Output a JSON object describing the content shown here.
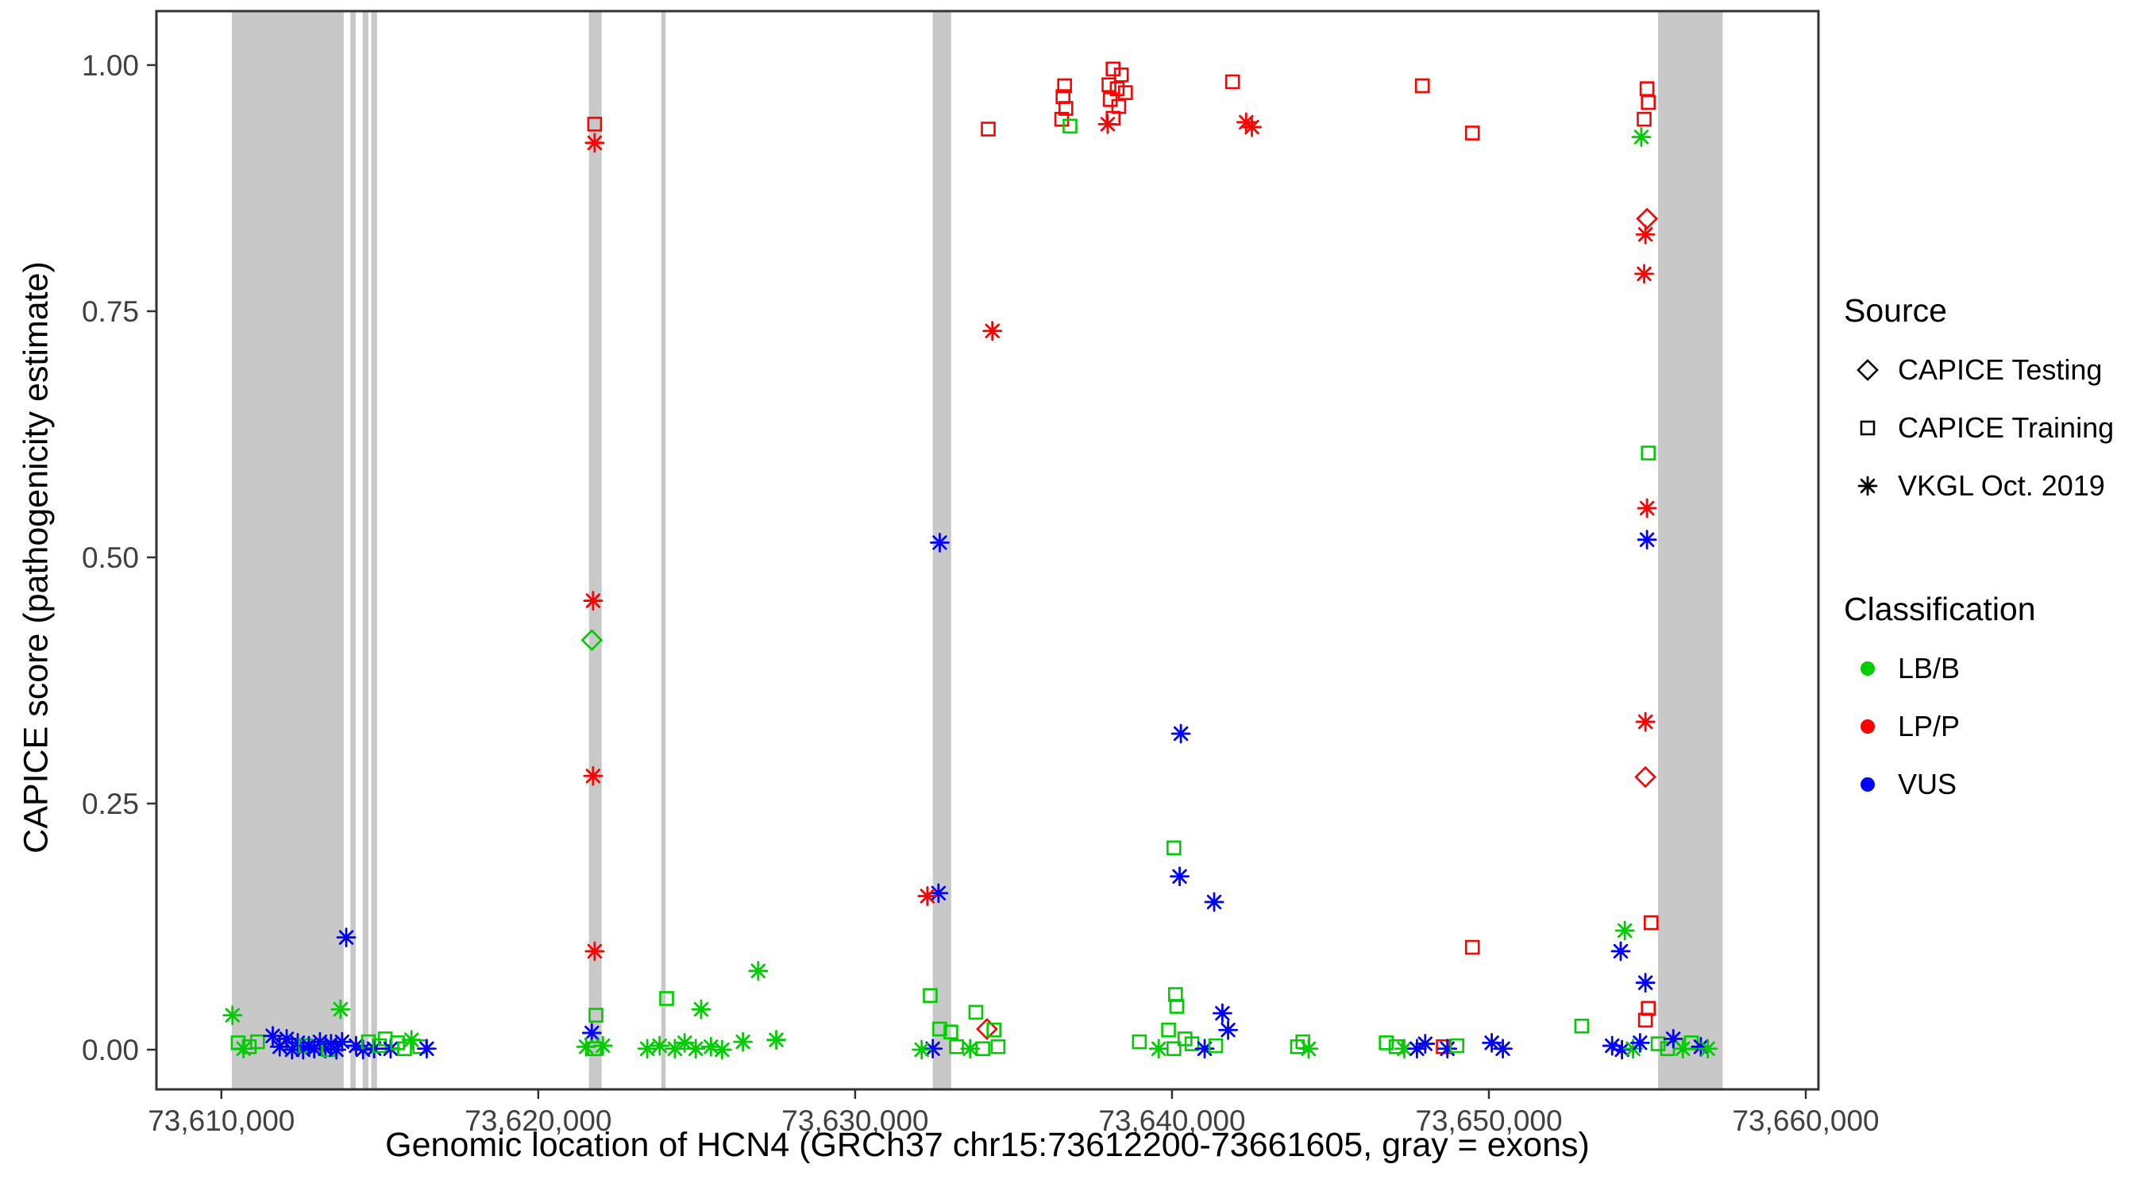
{
  "legend": {
    "source": {
      "title": "Source",
      "items": [
        {
          "label": "CAPICE Testing",
          "marker": "diamond"
        },
        {
          "label": "CAPICE Training",
          "marker": "square"
        },
        {
          "label": "VKGL Oct. 2019",
          "marker": "asterisk"
        }
      ]
    },
    "classification": {
      "title": "Classification",
      "items": [
        {
          "label": "LB/B",
          "color": "#00cd00"
        },
        {
          "label": "LP/P",
          "color": "#ff0000"
        },
        {
          "label": "VUS",
          "color": "#0000ff"
        }
      ]
    }
  },
  "chart_data": {
    "type": "scatter",
    "title": "",
    "xlabel": "Genomic location of HCN4 (GRCh37 chr15:73612200-73661605, gray = exons)",
    "ylabel": "CAPICE score (pathogenicity estimate)",
    "xlim": [
      73607950,
      73660400
    ],
    "ylim": [
      -0.0403,
      1.0548
    ],
    "x_ticks": [
      {
        "v": 73610000,
        "label": "73,610,000"
      },
      {
        "v": 73620000,
        "label": "73,620,000"
      },
      {
        "v": 73630000,
        "label": "73,630,000"
      },
      {
        "v": 73640000,
        "label": "73,640,000"
      },
      {
        "v": 73650000,
        "label": "73,650,000"
      },
      {
        "v": 73660000,
        "label": "73,660,000"
      }
    ],
    "y_ticks": [
      {
        "v": 0,
        "label": "0.00"
      },
      {
        "v": 0.25,
        "label": "0.25"
      },
      {
        "v": 0.5,
        "label": "0.50"
      },
      {
        "v": 0.75,
        "label": "0.75"
      },
      {
        "v": 1,
        "label": "1.00"
      }
    ],
    "colors": {
      "LB/B": "#00cd00",
      "LP/P": "#ff0000",
      "VUS": "#0000ff",
      "exon": "#c8c8c8"
    },
    "marker_by_source": {
      "CAPICE Testing": "diamond",
      "CAPICE Training": "square",
      "VKGL Oct. 2019": "asterisk"
    },
    "exon_regions": [
      [
        73610330,
        73613860
      ],
      [
        73614070,
        73614240
      ],
      [
        73614460,
        73614640
      ],
      [
        73614730,
        73614910
      ],
      [
        73621600,
        73622000
      ],
      [
        73623880,
        73624020
      ],
      [
        73632450,
        73633030
      ],
      [
        73655340,
        73657380
      ]
    ],
    "points_format": [
      "x",
      "y",
      "classification",
      "source"
    ],
    "points": [
      [
        73610350,
        0.035,
        "LB/B",
        "VKGL Oct. 2019"
      ],
      [
        73610530,
        0.007,
        "LB/B",
        "CAPICE Training"
      ],
      [
        73610700,
        0.001,
        "LB/B",
        "VKGL Oct. 2019"
      ],
      [
        73610880,
        0.003,
        "LB/B",
        "CAPICE Training"
      ],
      [
        73611140,
        0.008,
        "LB/B",
        "CAPICE Training"
      ],
      [
        73611620,
        0.014,
        "VUS",
        "VKGL Oct. 2019"
      ],
      [
        73611840,
        0.003,
        "VUS",
        "VKGL Oct. 2019"
      ],
      [
        73612060,
        0.011,
        "VUS",
        "VKGL Oct. 2019"
      ],
      [
        73612230,
        0.0,
        "VUS",
        "VKGL Oct. 2019"
      ],
      [
        73612410,
        0.007,
        "VUS",
        "VKGL Oct. 2019"
      ],
      [
        73612580,
        0.0,
        "VUS",
        "VKGL Oct. 2019"
      ],
      [
        73612660,
        0.004,
        "LB/B",
        "CAPICE Training"
      ],
      [
        73612760,
        0.004,
        "VUS",
        "VKGL Oct. 2019"
      ],
      [
        73612930,
        0.001,
        "VUS",
        "VKGL Oct. 2019"
      ],
      [
        73613110,
        0.008,
        "VUS",
        "VKGL Oct. 2019"
      ],
      [
        73613280,
        0.001,
        "VUS",
        "VKGL Oct. 2019"
      ],
      [
        73613380,
        0.0,
        "LB/B",
        "CAPICE Training"
      ],
      [
        73613460,
        0.006,
        "VUS",
        "VKGL Oct. 2019"
      ],
      [
        73613630,
        0.0,
        "VUS",
        "VKGL Oct. 2019"
      ],
      [
        73613760,
        0.041,
        "LB/B",
        "VKGL Oct. 2019"
      ],
      [
        73613810,
        0.008,
        "VUS",
        "VKGL Oct. 2019"
      ],
      [
        73613940,
        0.114,
        "VUS",
        "VKGL Oct. 2019"
      ],
      [
        73614250,
        0.004,
        "VUS",
        "VKGL Oct. 2019"
      ],
      [
        73614470,
        0.0,
        "VUS",
        "VKGL Oct. 2019"
      ],
      [
        73614640,
        0.008,
        "LB/B",
        "CAPICE Training"
      ],
      [
        73614820,
        0.001,
        "VUS",
        "VKGL Oct. 2019"
      ],
      [
        73614990,
        0.004,
        "LB/B",
        "CAPICE Training"
      ],
      [
        73615170,
        0.011,
        "LB/B",
        "CAPICE Training"
      ],
      [
        73615340,
        0.001,
        "VUS",
        "VKGL Oct. 2019"
      ],
      [
        73615560,
        0.007,
        "LB/B",
        "CAPICE Training"
      ],
      [
        73615780,
        0.001,
        "LB/B",
        "CAPICE Training"
      ],
      [
        73616000,
        0.01,
        "LB/B",
        "VKGL Oct. 2019"
      ],
      [
        73616260,
        0.003,
        "LB/B",
        "CAPICE Training"
      ],
      [
        73616480,
        0.001,
        "VUS",
        "VKGL Oct. 2019"
      ],
      [
        73621780,
        0.94,
        "LP/P",
        "CAPICE Training"
      ],
      [
        73621780,
        0.921,
        "LP/P",
        "VKGL Oct. 2019"
      ],
      [
        73621730,
        0.456,
        "LP/P",
        "VKGL Oct. 2019"
      ],
      [
        73621690,
        0.416,
        "LB/B",
        "CAPICE Testing"
      ],
      [
        73621730,
        0.278,
        "LP/P",
        "VKGL Oct. 2019"
      ],
      [
        73621780,
        0.1,
        "LP/P",
        "VKGL Oct. 2019"
      ],
      [
        73621820,
        0.035,
        "LB/B",
        "CAPICE Training"
      ],
      [
        73621690,
        0.017,
        "VUS",
        "VKGL Oct. 2019"
      ],
      [
        73621510,
        0.003,
        "LB/B",
        "VKGL Oct. 2019"
      ],
      [
        73621780,
        0.001,
        "LB/B",
        "CAPICE Training"
      ],
      [
        73622040,
        0.004,
        "LB/B",
        "VKGL Oct. 2019"
      ],
      [
        73623440,
        0.001,
        "LB/B",
        "VKGL Oct. 2019"
      ],
      [
        73623830,
        0.004,
        "LB/B",
        "VKGL Oct. 2019"
      ],
      [
        73624050,
        0.052,
        "LB/B",
        "CAPICE Training"
      ],
      [
        73624310,
        0.001,
        "LB/B",
        "VKGL Oct. 2019"
      ],
      [
        73624620,
        0.007,
        "LB/B",
        "VKGL Oct. 2019"
      ],
      [
        73624970,
        0.001,
        "LB/B",
        "VKGL Oct. 2019"
      ],
      [
        73625140,
        0.041,
        "LB/B",
        "VKGL Oct. 2019"
      ],
      [
        73625450,
        0.003,
        "LB/B",
        "VKGL Oct. 2019"
      ],
      [
        73625800,
        0.0,
        "LB/B",
        "VKGL Oct. 2019"
      ],
      [
        73626460,
        0.008,
        "LB/B",
        "VKGL Oct. 2019"
      ],
      [
        73626940,
        0.08,
        "LB/B",
        "VKGL Oct. 2019"
      ],
      [
        73627510,
        0.01,
        "LB/B",
        "VKGL Oct. 2019"
      ],
      [
        73632670,
        0.515,
        "VUS",
        "VKGL Oct. 2019"
      ],
      [
        73632630,
        0.159,
        "VUS",
        "VKGL Oct. 2019"
      ],
      [
        73632280,
        0.156,
        "LP/P",
        "VKGL Oct. 2019"
      ],
      [
        73632370,
        0.055,
        "LB/B",
        "CAPICE Training"
      ],
      [
        73632670,
        0.021,
        "LB/B",
        "CAPICE Training"
      ],
      [
        73632450,
        0.001,
        "VUS",
        "VKGL Oct. 2019"
      ],
      [
        73632100,
        0.0,
        "LB/B",
        "VKGL Oct. 2019"
      ],
      [
        73633020,
        0.018,
        "LB/B",
        "CAPICE Training"
      ],
      [
        73633200,
        0.003,
        "LB/B",
        "CAPICE Training"
      ],
      [
        73633810,
        0.038,
        "LB/B",
        "CAPICE Training"
      ],
      [
        73634160,
        0.021,
        "LP/P",
        "CAPICE Testing"
      ],
      [
        73634380,
        0.02,
        "LB/B",
        "CAPICE Training"
      ],
      [
        73633630,
        0.001,
        "LB/B",
        "VKGL Oct. 2019"
      ],
      [
        73634030,
        0.001,
        "LB/B",
        "CAPICE Training"
      ],
      [
        73634510,
        0.003,
        "LB/B",
        "CAPICE Training"
      ],
      [
        73634200,
        0.935,
        "LP/P",
        "CAPICE Training"
      ],
      [
        73634330,
        0.73,
        "LP/P",
        "VKGL Oct. 2019"
      ],
      [
        73636610,
        0.979,
        "LP/P",
        "CAPICE Training"
      ],
      [
        73636560,
        0.968,
        "LP/P",
        "CAPICE Training"
      ],
      [
        73636650,
        0.956,
        "LP/P",
        "CAPICE Training"
      ],
      [
        73636520,
        0.945,
        "LP/P",
        "CAPICE Training"
      ],
      [
        73636780,
        0.938,
        "LB/B",
        "CAPICE Training"
      ],
      [
        73638140,
        0.996,
        "LP/P",
        "CAPICE Training"
      ],
      [
        73638400,
        0.99,
        "LP/P",
        "CAPICE Training"
      ],
      [
        73638010,
        0.98,
        "LP/P",
        "CAPICE Training"
      ],
      [
        73638270,
        0.976,
        "LP/P",
        "CAPICE Training"
      ],
      [
        73638530,
        0.972,
        "LP/P",
        "CAPICE Training"
      ],
      [
        73638050,
        0.965,
        "LP/P",
        "CAPICE Training"
      ],
      [
        73638320,
        0.958,
        "LP/P",
        "CAPICE Training"
      ],
      [
        73638140,
        0.946,
        "LP/P",
        "CAPICE Training"
      ],
      [
        73637970,
        0.94,
        "LP/P",
        "VKGL Oct. 2019"
      ],
      [
        73641910,
        0.983,
        "LP/P",
        "CAPICE Training"
      ],
      [
        73642340,
        0.942,
        "LP/P",
        "VKGL Oct. 2019"
      ],
      [
        73642520,
        0.937,
        "LP/P",
        "VKGL Oct. 2019"
      ],
      [
        73647900,
        0.979,
        "LP/P",
        "CAPICE Training"
      ],
      [
        73649480,
        0.931,
        "LP/P",
        "CAPICE Training"
      ],
      [
        73640280,
        0.321,
        "VUS",
        "VKGL Oct. 2019"
      ],
      [
        73640060,
        0.205,
        "LB/B",
        "CAPICE Training"
      ],
      [
        73640240,
        0.176,
        "VUS",
        "VKGL Oct. 2019"
      ],
      [
        73641330,
        0.15,
        "VUS",
        "VKGL Oct. 2019"
      ],
      [
        73640110,
        0.056,
        "LB/B",
        "CAPICE Training"
      ],
      [
        73640150,
        0.044,
        "LB/B",
        "CAPICE Training"
      ],
      [
        73641590,
        0.037,
        "VUS",
        "VKGL Oct. 2019"
      ],
      [
        73641770,
        0.02,
        "VUS",
        "VKGL Oct. 2019"
      ],
      [
        73639890,
        0.02,
        "LB/B",
        "CAPICE Training"
      ],
      [
        73640410,
        0.011,
        "LB/B",
        "CAPICE Training"
      ],
      [
        73640060,
        0.001,
        "LB/B",
        "CAPICE Training"
      ],
      [
        73640630,
        0.006,
        "LB/B",
        "CAPICE Training"
      ],
      [
        73639580,
        0.001,
        "LB/B",
        "VKGL Oct. 2019"
      ],
      [
        73638970,
        0.008,
        "LB/B",
        "CAPICE Training"
      ],
      [
        73641030,
        0.001,
        "VUS",
        "VKGL Oct. 2019"
      ],
      [
        73641380,
        0.004,
        "LB/B",
        "CAPICE Training"
      ],
      [
        73643960,
        0.003,
        "LB/B",
        "CAPICE Training"
      ],
      [
        73644130,
        0.008,
        "LB/B",
        "CAPICE Training"
      ],
      [
        73644310,
        0.001,
        "LB/B",
        "VKGL Oct. 2019"
      ],
      [
        73646760,
        0.007,
        "LB/B",
        "CAPICE Training"
      ],
      [
        73647070,
        0.003,
        "LB/B",
        "CAPICE Training"
      ],
      [
        73647330,
        0.001,
        "LB/B",
        "VKGL Oct. 2019"
      ],
      [
        73647730,
        0.001,
        "VUS",
        "VKGL Oct. 2019"
      ],
      [
        73647990,
        0.006,
        "VUS",
        "VKGL Oct. 2019"
      ],
      [
        73648560,
        0.003,
        "LP/P",
        "CAPICE Training"
      ],
      [
        73648690,
        0.001,
        "VUS",
        "VKGL Oct. 2019"
      ],
      [
        73648990,
        0.004,
        "LB/B",
        "CAPICE Training"
      ],
      [
        73649480,
        0.104,
        "LP/P",
        "CAPICE Training"
      ],
      [
        73650090,
        0.007,
        "VUS",
        "VKGL Oct. 2019"
      ],
      [
        73650440,
        0.001,
        "VUS",
        "VKGL Oct. 2019"
      ],
      [
        73652930,
        0.024,
        "LB/B",
        "CAPICE Training"
      ],
      [
        73654990,
        0.976,
        "LP/P",
        "CAPICE Training"
      ],
      [
        73655030,
        0.962,
        "LP/P",
        "CAPICE Training"
      ],
      [
        73654900,
        0.945,
        "LP/P",
        "CAPICE Training"
      ],
      [
        73654810,
        0.927,
        "LB/B",
        "VKGL Oct. 2019"
      ],
      [
        73654990,
        0.844,
        "LP/P",
        "CAPICE Testing"
      ],
      [
        73654940,
        0.828,
        "LP/P",
        "VKGL Oct. 2019"
      ],
      [
        73654900,
        0.788,
        "LP/P",
        "VKGL Oct. 2019"
      ],
      [
        73655030,
        0.606,
        "LB/B",
        "CAPICE Training"
      ],
      [
        73654990,
        0.55,
        "LP/P",
        "VKGL Oct. 2019"
      ],
      [
        73654990,
        0.518,
        "VUS",
        "VKGL Oct. 2019"
      ],
      [
        73654940,
        0.333,
        "LP/P",
        "VKGL Oct. 2019"
      ],
      [
        73654940,
        0.277,
        "LP/P",
        "CAPICE Testing"
      ],
      [
        73654290,
        0.121,
        "LB/B",
        "VKGL Oct. 2019"
      ],
      [
        73655120,
        0.129,
        "LP/P",
        "CAPICE Training"
      ],
      [
        73654160,
        0.1,
        "VUS",
        "VKGL Oct. 2019"
      ],
      [
        73654940,
        0.068,
        "VUS",
        "VKGL Oct. 2019"
      ],
      [
        73655030,
        0.042,
        "LP/P",
        "CAPICE Training"
      ],
      [
        73654940,
        0.03,
        "LP/P",
        "CAPICE Training"
      ],
      [
        73653890,
        0.004,
        "VUS",
        "VKGL Oct. 2019"
      ],
      [
        73654200,
        0.0,
        "VUS",
        "VKGL Oct. 2019"
      ],
      [
        73654550,
        0.001,
        "LB/B",
        "VKGL Oct. 2019"
      ],
      [
        73654770,
        0.007,
        "VUS",
        "VKGL Oct. 2019"
      ],
      [
        73655340,
        0.006,
        "LB/B",
        "CAPICE Training"
      ],
      [
        73655640,
        0.001,
        "LB/B",
        "CAPICE Training"
      ],
      [
        73655820,
        0.011,
        "VUS",
        "VKGL Oct. 2019"
      ],
      [
        73656120,
        0.001,
        "LB/B",
        "VKGL Oct. 2019"
      ],
      [
        73656390,
        0.007,
        "LB/B",
        "CAPICE Training"
      ],
      [
        73656690,
        0.003,
        "VUS",
        "VKGL Oct. 2019"
      ],
      [
        73656910,
        0.001,
        "LB/B",
        "VKGL Oct. 2019"
      ]
    ]
  }
}
